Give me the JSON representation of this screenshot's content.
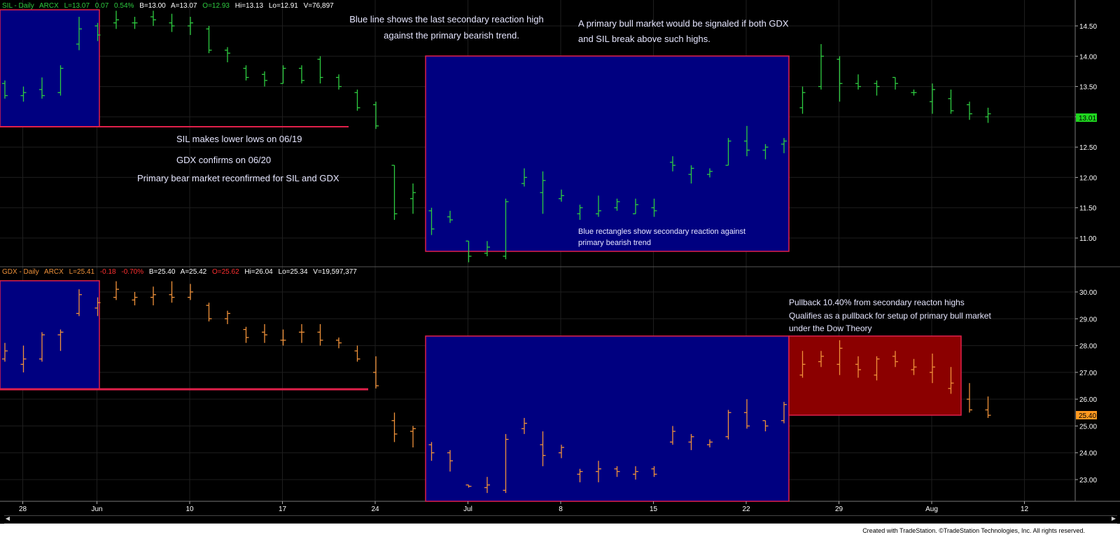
{
  "colors": {
    "background": "#000000",
    "sil_bar": "#2ecc40",
    "gdx_bar": "#f0923a",
    "rect_fill": "#000080",
    "rect_border": "#e0204a",
    "red_rect_fill": "#8b0000",
    "hline": "#e0204a",
    "grid": "#1e1e1e",
    "text": "#e6e6ff",
    "axis": "#ffffff",
    "last_sil_bg": "#1fd61f",
    "last_gdx_bg": "#ff9920"
  },
  "header_sil": {
    "title": "SIL - Daily",
    "exchange": "ARCX",
    "last": "L=13.07",
    "chg": "0.07",
    "pct": "0.54%",
    "bid": "B=13.00",
    "ask": "A=13.07",
    "open": "O=12.93",
    "high": "Hi=13.13",
    "low": "Lo=12.91",
    "vol": "V=76,897"
  },
  "header_gdx": {
    "title": "GDX - Daily",
    "exchange": "ARCX",
    "last": "L=25.41",
    "chg": "-0.18",
    "pct": "-0.70%",
    "bid": "B=25.40",
    "ask": "A=25.42",
    "open": "O=25.62",
    "high": "Hi=26.04",
    "low": "Lo=25.34",
    "vol": "V=19,597,377"
  },
  "annotations": {
    "blue_line_1": "Blue line shows the last secondary reaction high",
    "blue_line_2": "against the primary bearish trend.",
    "bull_1": "A primary bull market would be signaled if both GDX",
    "bull_2": "and SIL break above such highs.",
    "sil_lower": "SIL makes lower lows on 06/19",
    "gdx_confirms": "GDX confirms on 06/20",
    "bear": "Primary bear market reconfirmed for SIL and GDX",
    "rect_1": "Blue rectangles show secondary reaction against",
    "rect_2": "primary bearish trend",
    "pull_1": "Pullback 10.40% from secondary reacton highs",
    "pull_2": "Qualifies as a pullback for setup of primary bull market",
    "pull_3": "under the Dow Theory"
  },
  "footer": "Created with TradeStation. ©TradeStation Technologies, Inc. All rights reserved.",
  "chart_data": [
    {
      "type": "ohlc",
      "symbol": "SIL",
      "x_labels": [
        "28",
        "Jun",
        "10",
        "17",
        "24",
        "Jul",
        "8",
        "15",
        "22",
        "29",
        "Aug",
        "12"
      ],
      "y_ticks": [
        "14.50",
        "14.00",
        "13.50",
        "13.00",
        "12.50",
        "12.00",
        "11.50",
        "11.00"
      ],
      "ylim": [
        10.6,
        14.8
      ],
      "last_value": "13.01",
      "bars": [
        [
          13.55,
          13.6,
          13.3,
          13.35
        ],
        [
          13.35,
          13.5,
          13.25,
          13.4
        ],
        [
          13.45,
          13.65,
          13.3,
          13.35
        ],
        [
          13.4,
          13.85,
          13.35,
          13.8
        ],
        [
          14.2,
          14.65,
          14.1,
          14.45
        ],
        [
          14.5,
          14.55,
          14.25,
          14.35
        ],
        [
          14.55,
          14.75,
          14.45,
          14.6
        ],
        [
          14.55,
          14.65,
          14.45,
          14.55
        ],
        [
          14.65,
          14.75,
          14.5,
          14.6
        ],
        [
          14.55,
          14.7,
          14.4,
          14.5
        ],
        [
          14.5,
          14.65,
          14.35,
          14.55
        ],
        [
          14.45,
          14.5,
          14.05,
          14.1
        ],
        [
          14.1,
          14.15,
          13.9,
          14.05
        ],
        [
          13.8,
          13.85,
          13.6,
          13.65
        ],
        [
          13.7,
          13.75,
          13.5,
          13.6
        ],
        [
          13.55,
          13.85,
          13.55,
          13.8
        ],
        [
          13.8,
          13.85,
          13.55,
          13.6
        ],
        [
          13.95,
          14.0,
          13.55,
          13.65
        ],
        [
          13.65,
          13.7,
          13.45,
          13.5
        ],
        [
          13.4,
          13.45,
          13.1,
          13.15
        ],
        [
          13.2,
          13.25,
          12.8,
          12.85
        ],
        [
          12.2,
          12.2,
          11.3,
          11.4
        ],
        [
          11.65,
          11.9,
          11.4,
          11.75
        ],
        [
          11.45,
          11.5,
          11.05,
          11.15
        ],
        [
          11.35,
          11.45,
          11.25,
          11.3
        ],
        [
          10.95,
          10.95,
          10.6,
          10.7
        ],
        [
          10.75,
          10.95,
          10.7,
          10.85
        ],
        [
          10.7,
          11.65,
          10.65,
          11.6
        ],
        [
          11.9,
          12.15,
          11.85,
          12.0
        ],
        [
          11.75,
          12.1,
          11.4,
          11.95
        ],
        [
          11.65,
          11.8,
          11.6,
          11.7
        ],
        [
          11.4,
          11.55,
          11.3,
          11.5
        ],
        [
          11.4,
          11.7,
          11.35,
          11.45
        ],
        [
          11.5,
          11.65,
          11.45,
          11.6
        ],
        [
          11.4,
          11.65,
          11.4,
          11.55
        ],
        [
          11.5,
          11.65,
          11.35,
          11.45
        ],
        [
          12.25,
          12.35,
          12.1,
          12.2
        ],
        [
          12.05,
          12.2,
          11.9,
          12.15
        ],
        [
          12.05,
          12.15,
          12.0,
          12.1
        ],
        [
          12.2,
          12.65,
          12.2,
          12.6
        ],
        [
          12.6,
          12.85,
          12.35,
          12.45
        ],
        [
          12.45,
          12.55,
          12.3,
          12.5
        ],
        [
          12.55,
          12.65,
          12.4,
          12.6
        ],
        [
          13.15,
          13.5,
          13.05,
          13.4
        ],
        [
          13.5,
          14.2,
          13.45,
          14.0
        ],
        [
          13.95,
          14.0,
          13.25,
          13.55
        ],
        [
          13.55,
          13.7,
          13.45,
          13.5
        ],
        [
          13.55,
          13.6,
          13.35,
          13.5
        ],
        [
          13.65,
          13.65,
          13.45,
          13.55
        ],
        [
          13.4,
          13.45,
          13.35,
          13.4
        ],
        [
          13.25,
          13.55,
          13.05,
          13.45
        ],
        [
          13.3,
          13.45,
          13.05,
          13.1
        ],
        [
          13.2,
          13.25,
          12.95,
          13.05
        ],
        [
          13.0,
          13.15,
          12.9,
          13.05
        ]
      ]
    },
    {
      "type": "ohlc",
      "symbol": "GDX",
      "x_labels": [
        "28",
        "Jun",
        "10",
        "17",
        "24",
        "Jul",
        "8",
        "15",
        "22",
        "29",
        "Aug",
        "12"
      ],
      "y_ticks": [
        "30.00",
        "29.00",
        "28.00",
        "27.00",
        "26.00",
        "25.00",
        "24.00",
        "23.00"
      ],
      "ylim": [
        22.6,
        30.4
      ],
      "last_value": "25.40",
      "bars": [
        [
          27.5,
          28.1,
          27.4,
          27.8
        ],
        [
          27.3,
          28.0,
          27.0,
          27.5
        ],
        [
          27.5,
          28.5,
          27.4,
          28.4
        ],
        [
          28.4,
          28.6,
          27.8,
          28.5
        ],
        [
          29.2,
          30.1,
          29.1,
          29.9
        ],
        [
          29.4,
          29.8,
          29.1,
          29.6
        ],
        [
          29.8,
          30.4,
          29.7,
          30.1
        ],
        [
          29.7,
          30.0,
          29.5,
          29.8
        ],
        [
          29.8,
          30.2,
          29.5,
          29.9
        ],
        [
          29.9,
          30.4,
          29.6,
          29.8
        ],
        [
          29.8,
          30.3,
          29.7,
          30.0
        ],
        [
          29.5,
          29.6,
          28.9,
          29.0
        ],
        [
          29.0,
          29.3,
          28.8,
          29.2
        ],
        [
          28.6,
          28.7,
          28.1,
          28.3
        ],
        [
          28.5,
          28.8,
          28.1,
          28.4
        ],
        [
          28.2,
          28.6,
          28.0,
          28.2
        ],
        [
          28.5,
          28.8,
          28.1,
          28.5
        ],
        [
          28.5,
          28.8,
          28.0,
          28.2
        ],
        [
          28.2,
          28.3,
          27.9,
          28.1
        ],
        [
          27.8,
          28.0,
          27.4,
          27.5
        ],
        [
          27.0,
          27.6,
          26.4,
          26.5
        ],
        [
          25.2,
          25.5,
          24.4,
          24.7
        ],
        [
          24.8,
          25.0,
          24.2,
          24.9
        ],
        [
          24.3,
          24.4,
          23.7,
          24.0
        ],
        [
          24.0,
          24.1,
          23.3,
          23.7
        ],
        [
          22.8,
          22.8,
          22.7,
          22.75
        ],
        [
          22.7,
          23.1,
          22.5,
          22.8
        ],
        [
          22.6,
          24.7,
          22.5,
          24.5
        ],
        [
          24.9,
          25.3,
          24.7,
          25.1
        ],
        [
          24.3,
          24.8,
          23.5,
          23.9
        ],
        [
          24.0,
          24.3,
          23.8,
          24.2
        ],
        [
          23.2,
          23.4,
          22.9,
          23.3
        ],
        [
          23.3,
          23.7,
          22.9,
          23.4
        ],
        [
          23.4,
          23.5,
          23.1,
          23.3
        ],
        [
          23.2,
          23.5,
          23.0,
          23.3
        ],
        [
          23.4,
          23.5,
          23.1,
          23.2
        ],
        [
          24.4,
          25.0,
          24.3,
          24.8
        ],
        [
          24.4,
          24.7,
          24.1,
          24.6
        ],
        [
          24.3,
          24.5,
          24.2,
          24.4
        ],
        [
          24.6,
          25.6,
          24.5,
          25.5
        ],
        [
          25.5,
          26.0,
          24.9,
          25.0
        ],
        [
          25.2,
          25.2,
          24.8,
          25.0
        ],
        [
          25.2,
          25.9,
          25.1,
          25.8
        ],
        [
          26.9,
          27.8,
          26.8,
          27.3
        ],
        [
          27.4,
          27.8,
          27.2,
          27.6
        ],
        [
          27.3,
          28.2,
          26.9,
          27.9
        ],
        [
          27.3,
          27.6,
          26.8,
          27.1
        ],
        [
          26.9,
          27.6,
          26.7,
          27.5
        ],
        [
          27.6,
          27.8,
          27.2,
          27.4
        ],
        [
          27.1,
          27.5,
          26.9,
          27.2
        ],
        [
          27.0,
          27.7,
          26.6,
          27.2
        ],
        [
          26.4,
          27.2,
          26.2,
          26.6
        ],
        [
          26.0,
          26.6,
          25.5,
          25.6
        ],
        [
          25.6,
          26.1,
          25.3,
          25.4
        ]
      ]
    }
  ]
}
